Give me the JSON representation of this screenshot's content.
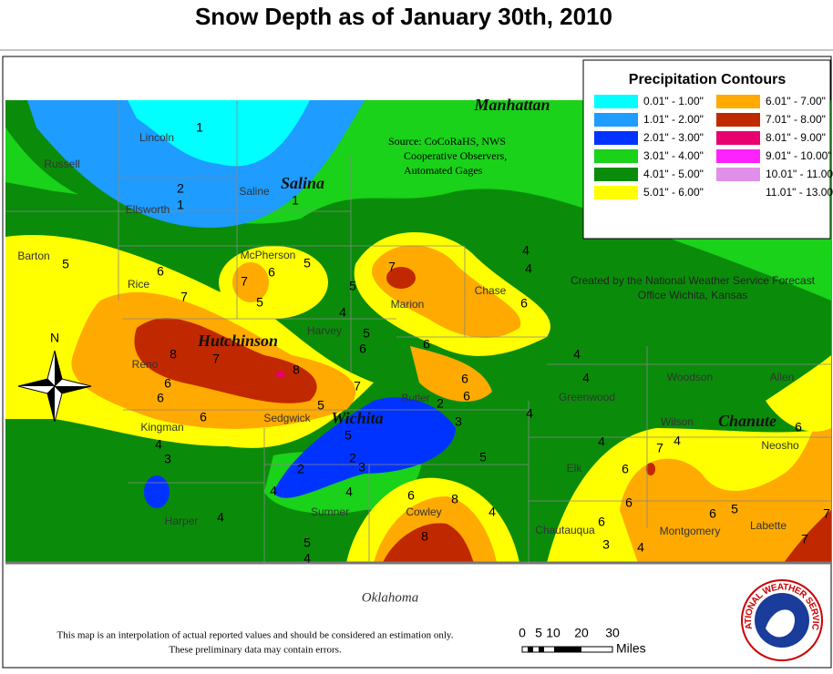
{
  "title": "Snow Depth as of January 30th, 2010",
  "legend": {
    "title": "Precipitation Contours",
    "items": [
      {
        "label": "0.01\" - 1.00\"",
        "color": "#00ffff"
      },
      {
        "label": "1.01\" - 2.00\"",
        "color": "#1e9cff"
      },
      {
        "label": "2.01\" - 3.00\"",
        "color": "#0033ff"
      },
      {
        "label": "3.01\" - 4.00\"",
        "color": "#19d219"
      },
      {
        "label": "4.01\" - 5.00\"",
        "color": "#0a8c0a"
      },
      {
        "label": "5.01\" - 6.00\"",
        "color": "#ffff00"
      },
      {
        "label": "6.01\" - 7.00\"",
        "color": "#ffaa00"
      },
      {
        "label": "7.01\" - 8.00\"",
        "color": "#c02800"
      },
      {
        "label": "8.01\" - 9.00\"",
        "color": "#e8006e"
      },
      {
        "label": "9.01\" - 10.00\"",
        "color": "#ff22ff"
      },
      {
        "label": "10.01\" - 11.00\"",
        "color": "#e090e8"
      },
      {
        "label": "11.01\" - 13.00\"",
        "color": "#ffffff"
      }
    ]
  },
  "source": [
    "Source: CoCoRaHS, NWS",
    "Cooperative Observers,",
    "Automated Gages"
  ],
  "credit": [
    "Created by the National Weather Service Forecast",
    "Office Wichita, Kansas"
  ],
  "cities": [
    "Manhattan",
    "Salina",
    "Hutchinson",
    "Wichita",
    "Chanute"
  ],
  "counties": [
    "Lincoln",
    "Russell",
    "Ellsworth",
    "Saline",
    "McPherson",
    "Barton",
    "Rice",
    "Marion",
    "Chase",
    "Harvey",
    "Reno",
    "Butler",
    "Greenwood",
    "Woodson",
    "Allen",
    "Kingman",
    "Sedgwick",
    "Wilson",
    "Neosho",
    "Elk",
    "Harper",
    "Sumner",
    "Cowley",
    "Chautauqua",
    "Montgomery",
    "Labette"
  ],
  "observations": [
    "1",
    "2",
    "1",
    "1",
    "5",
    "6",
    "7",
    "7",
    "6",
    "5",
    "5",
    "5",
    "7",
    "4",
    "4",
    "6",
    "4",
    "5",
    "6",
    "8",
    "7",
    "8",
    "6",
    "6",
    "6",
    "6",
    "6",
    "2",
    "3",
    "7",
    "5",
    "6",
    "5",
    "4",
    "3",
    "2",
    "3",
    "2",
    "4",
    "4",
    "4",
    "6",
    "8",
    "4",
    "5",
    "4",
    "4",
    "4",
    "4",
    "7",
    "4",
    "6",
    "6",
    "6",
    "6",
    "3",
    "4",
    "6",
    "5",
    "7",
    "7",
    "8",
    "5",
    "4"
  ],
  "state": "Oklahoma",
  "disclaimer": [
    "This map is an interpolation of actual reported values and should be considered an estimation only.",
    "These preliminary data may contain errors."
  ],
  "scale": {
    "ticks": [
      "0",
      "5",
      "10",
      "20",
      "30"
    ],
    "unit": "Miles"
  },
  "logo": "NATIONAL WEATHER SERVICE",
  "compass": "N"
}
